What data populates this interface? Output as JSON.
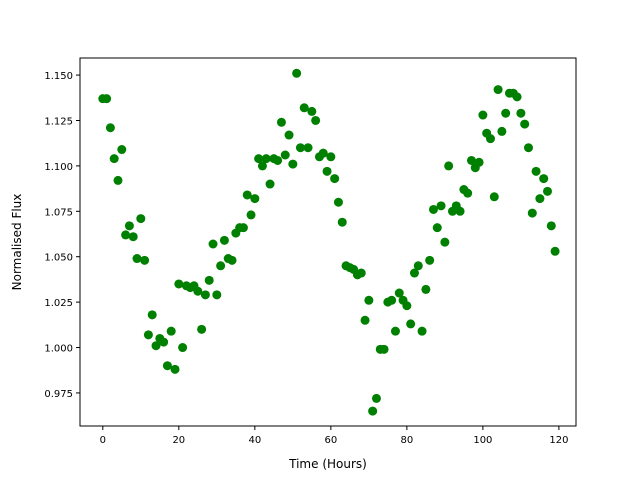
{
  "chart_data": {
    "type": "scatter",
    "title": "",
    "xlabel": "Time (Hours)",
    "ylabel": "Normalised Flux",
    "xlim": [
      -6,
      124.5
    ],
    "ylim": [
      0.9568,
      1.1594
    ],
    "xticks": [
      0,
      20,
      40,
      60,
      80,
      100,
      120
    ],
    "yticks": [
      0.975,
      1.0,
      1.025,
      1.05,
      1.075,
      1.1,
      1.125,
      1.15
    ],
    "xtick_labels": [
      "0",
      "20",
      "40",
      "60",
      "80",
      "100",
      "120"
    ],
    "ytick_labels": [
      "0.975",
      "1.000",
      "1.025",
      "1.050",
      "1.075",
      "1.100",
      "1.125",
      "1.150"
    ],
    "grid": false,
    "marker_color": "#008000",
    "x": [
      0,
      1,
      2,
      3,
      4,
      5,
      6,
      7,
      8,
      9,
      10,
      11,
      12,
      13,
      14,
      15,
      16,
      17,
      18,
      19,
      20,
      21,
      22,
      23,
      24,
      25,
      26,
      27,
      28,
      29,
      30,
      31,
      32,
      33,
      34,
      35,
      36,
      37,
      38,
      39,
      40,
      41,
      42,
      43,
      44,
      45,
      46,
      47,
      48,
      49,
      50,
      51,
      52,
      53,
      54,
      55,
      56,
      57,
      58,
      59,
      60,
      61,
      62,
      63,
      64,
      65,
      66,
      67,
      68,
      69,
      70,
      71,
      72,
      73,
      74,
      75,
      76,
      77,
      78,
      79,
      80,
      81,
      82,
      83,
      84,
      85,
      86,
      87,
      88,
      89,
      90,
      91,
      92,
      93,
      94,
      95,
      96,
      97,
      98,
      99,
      100,
      101,
      102,
      103,
      104,
      105,
      106,
      107,
      108,
      109,
      110,
      111,
      112,
      113,
      114,
      115,
      116,
      117,
      118,
      119
    ],
    "y": [
      1.137,
      1.137,
      1.121,
      1.104,
      1.092,
      1.109,
      1.062,
      1.067,
      1.061,
      1.049,
      1.071,
      1.048,
      1.007,
      1.018,
      1.001,
      1.005,
      1.003,
      0.99,
      1.009,
      0.988,
      1.035,
      1.0,
      1.034,
      1.033,
      1.034,
      1.031,
      1.01,
      1.029,
      1.037,
      1.057,
      1.029,
      1.045,
      1.059,
      1.049,
      1.048,
      1.063,
      1.066,
      1.066,
      1.084,
      1.073,
      1.082,
      1.104,
      1.1,
      1.104,
      1.09,
      1.104,
      1.103,
      1.124,
      1.106,
      1.117,
      1.101,
      1.151,
      1.11,
      1.132,
      1.11,
      1.13,
      1.125,
      1.105,
      1.107,
      1.097,
      1.105,
      1.093,
      1.08,
      1.069,
      1.045,
      1.044,
      1.043,
      1.04,
      1.041,
      1.015,
      1.026,
      0.965,
      0.972,
      0.999,
      0.999,
      1.025,
      1.026,
      1.009,
      1.03,
      1.026,
      1.023,
      1.013,
      1.041,
      1.045,
      1.009,
      1.032,
      1.048,
      1.076,
      1.066,
      1.078,
      1.058,
      1.1,
      1.075,
      1.078,
      1.075,
      1.087,
      1.085,
      1.103,
      1.099,
      1.102,
      1.128,
      1.118,
      1.115,
      1.083,
      1.142,
      1.119,
      1.129,
      1.14,
      1.14,
      1.138,
      1.129,
      1.123,
      1.11,
      1.074,
      1.097,
      1.082,
      1.093,
      1.086,
      1.067,
      1.053
    ]
  }
}
